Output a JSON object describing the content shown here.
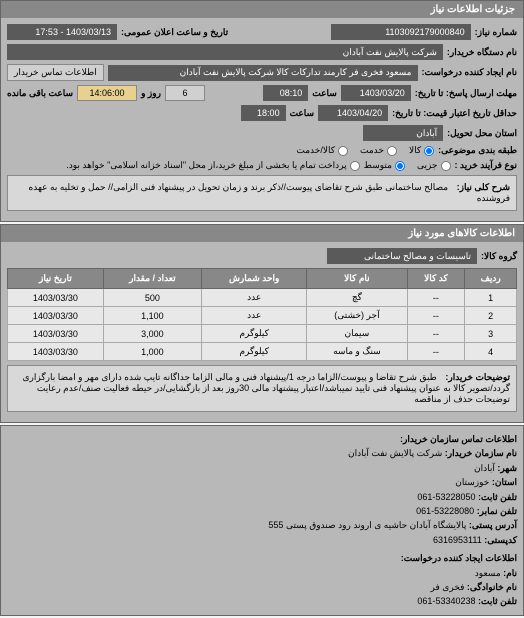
{
  "panels": {
    "details_title": "جزئیات اطلاعات نیاز",
    "request_number_label": "شماره نیاز:",
    "request_number": "1103092179000840",
    "announce_label": "تاریخ و ساعت اعلان عمومی:",
    "announce_value": "1403/03/13 - 17:53",
    "buyer_label": "نام دستگاه خریدار:",
    "buyer_value": "شرکت پالایش نفت آبادان",
    "requester_label": "نام ایجاد کننده درخواست:",
    "requester_value": "مسعود فخری فر کارمند تدارکات کالا شرکت پالایش نفت آبادان",
    "buyer_contact_btn": "اطلاعات تماس خریدار",
    "deadline_label": "مهلت ارسال پاسخ: تا تاریخ:",
    "deadline_date": "1403/03/20",
    "time_label": "ساعت",
    "deadline_time": "08:10",
    "days_remain": "6",
    "days_label": "روز و",
    "hours_remain": "14:06:00",
    "hours_label": "ساعت باقی مانده",
    "validity_label": "حداقل تاریخ اعتبار قیمت: تا تاریخ:",
    "validity_date": "1403/04/20",
    "validity_time": "18:00",
    "delivery_place_label": "استان محل تحویل:",
    "delivery_place": "آبادان",
    "category_label": "طبقه بندی موضوعی:",
    "cat_goods": "کالا",
    "cat_service": "خدمت",
    "cat_both": "کالا/خدمت",
    "purchase_type_label": "نوع فرآیند خرید :",
    "pt_low": "جزیی",
    "pt_mid": "متوسط",
    "pt_note": "پرداخت تمام یا بخشی از مبلغ خرید،از محل \"اسناد خزانه اسلامی\" خواهد بود.",
    "general_desc_label": "شرح کلی نیاز:",
    "general_desc": "مصالح ساختمانی طبق شرح تقاضای پیوست//ذکر برند و زمان تحویل در پیشنهاد فنی الزامی// حمل و تخلیه به عهده فروشنده",
    "goods_info_title": "اطلاعات کالاهای مورد نیاز",
    "goods_group_label": "گروه کالا:",
    "goods_group": "تاسیسات و مصالح ساختمانی",
    "table": {
      "headers": [
        "ردیف",
        "کد کالا",
        "نام کالا",
        "واحد شمارش",
        "تعداد / مقدار",
        "تاریخ نیاز"
      ],
      "rows": [
        [
          "1",
          "--",
          "گچ",
          "عدد",
          "500",
          "1403/03/30"
        ],
        [
          "2",
          "--",
          "آجر (خشتی)",
          "عدد",
          "1,100",
          "1403/03/30"
        ],
        [
          "3",
          "--",
          "سیمان",
          "کیلوگرم",
          "3,000",
          "1403/03/30"
        ],
        [
          "4",
          "--",
          "سنگ و ماسه",
          "کیلوگرم",
          "1,000",
          "1403/03/30"
        ]
      ]
    },
    "notes_label": "توضیحات خریدار:",
    "notes": "طبق شرح تقاضا و پیوست/الزاما درجه 1/پیشنهاد فنی و مالی الزاما جداگانه تایپ شده دارای مهر و امضا بارگزاری گردد/تصویر کالا به عنوان پیشنهاد فنی تایید نمیباشد/اعتبار پیشنهاد مالی 30روز بعد از بازگشایی/در حیطه فعالیت صنف/عدم رعایت توضیحات حذف از مناقصه",
    "contact_title": "اطلاعات تماس سازمان خریدار:",
    "org_name_label": "نام سازمان خریدار:",
    "org_name": "شرکت پالایش نفت آبادان",
    "city_label": "شهر:",
    "city": "آبادان",
    "province_label": "استان:",
    "province": "خوزستان",
    "phone_label": "تلفن ثابت:",
    "phone": "53228050-061",
    "fax_label": "تلفن نمابر:",
    "fax": "53228080-061",
    "address_label": "آدرس پستی:",
    "address": "پالایشگاه آبادان حاشیه ی اروند رود صندوق پستی 555",
    "postal_label": "کدپستی:",
    "postal": "6316953111",
    "creator_title": "اطلاعات ایجاد کننده درخواست:",
    "name_label": "نام:",
    "name": "مسعود",
    "surname_label": "نام خانوادگی:",
    "surname": "فخری فر",
    "creator_phone": "53340238-061"
  }
}
